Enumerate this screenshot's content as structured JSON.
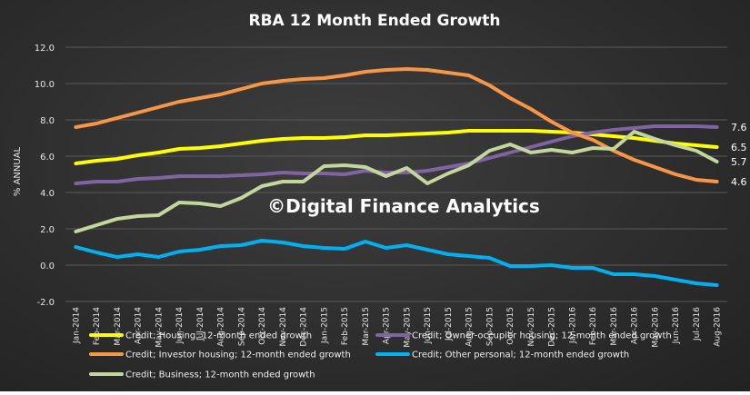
{
  "chart_data": {
    "type": "line",
    "title": "RBA 12 Month Ended Growth",
    "ylabel": "% ANNUAL",
    "xlabel": "",
    "watermark": "©Digital Finance Analytics",
    "ylim": [
      -2.0,
      12.0
    ],
    "yticks": [
      "12.0",
      "10.0",
      "8.0",
      "6.0",
      "4.0",
      "2.0",
      "0.0",
      "-2.0"
    ],
    "ytick_values": [
      12,
      10,
      8,
      6,
      4,
      2,
      0,
      -2
    ],
    "grid": true,
    "legend_placement": "bottom",
    "categories": [
      "Jan-2014",
      "Feb-2014",
      "Mar-2014",
      "Apr-2014",
      "May-2014",
      "Jun-2014",
      "Jul-2014",
      "Aug-2014",
      "Sep-2014",
      "Oct-2014",
      "Nov-2014",
      "Dec-2014",
      "Jan-2015",
      "Feb-2015",
      "Mar-2015",
      "Apr-2015",
      "May-2015",
      "Jun-2015",
      "Jul-2015",
      "Aug-2015",
      "Sep-2015",
      "Oct-2015",
      "Nov-2015",
      "Dec-2015",
      "Jan-2016",
      "Feb-2016",
      "Mar-2016",
      "Apr-2016",
      "May-2016",
      "Jun-2016",
      "Jul-2016",
      "Aug-2016"
    ],
    "series": [
      {
        "name": "Credit; Housing; 12-month ended growth",
        "color": "#ffff00",
        "end_label": "6.5",
        "values": [
          5.6,
          5.75,
          5.85,
          6.05,
          6.2,
          6.4,
          6.45,
          6.55,
          6.7,
          6.85,
          6.95,
          7.0,
          7.0,
          7.05,
          7.15,
          7.15,
          7.2,
          7.25,
          7.3,
          7.4,
          7.4,
          7.4,
          7.4,
          7.35,
          7.3,
          7.2,
          7.1,
          7.0,
          6.85,
          6.7,
          6.6,
          6.5
        ]
      },
      {
        "name": "Credit; Owner-occupier housing; 12-month ended growth",
        "color": "#8064a2",
        "end_label": "7.6",
        "values": [
          4.5,
          4.6,
          4.6,
          4.75,
          4.8,
          4.9,
          4.9,
          4.9,
          4.95,
          5.0,
          5.1,
          5.05,
          5.05,
          5.0,
          5.2,
          5.1,
          5.1,
          5.2,
          5.4,
          5.6,
          5.9,
          6.2,
          6.5,
          6.8,
          7.1,
          7.3,
          7.45,
          7.55,
          7.65,
          7.65,
          7.65,
          7.6
        ]
      },
      {
        "name": "Credit; Investor housing; 12-month ended growth",
        "color": "#f79646",
        "end_label": "4.6",
        "values": [
          7.6,
          7.8,
          8.1,
          8.4,
          8.7,
          9.0,
          9.2,
          9.4,
          9.7,
          10.0,
          10.15,
          10.25,
          10.3,
          10.45,
          10.65,
          10.75,
          10.8,
          10.75,
          10.6,
          10.45,
          9.9,
          9.2,
          8.6,
          7.9,
          7.3,
          6.9,
          6.3,
          5.8,
          5.4,
          5.0,
          4.7,
          4.6
        ]
      },
      {
        "name": "Credit; Other personal; 12-month ended growth",
        "color": "#00b0f0",
        "end_label": "",
        "values": [
          1.0,
          0.7,
          0.45,
          0.6,
          0.45,
          0.75,
          0.85,
          1.05,
          1.1,
          1.35,
          1.25,
          1.05,
          0.95,
          0.9,
          1.3,
          0.95,
          1.1,
          0.85,
          0.6,
          0.5,
          0.4,
          -0.05,
          -0.05,
          0.0,
          -0.15,
          -0.15,
          -0.5,
          -0.5,
          -0.6,
          -0.8,
          -1.0,
          -1.1
        ]
      },
      {
        "name": "Credit; Business; 12-month ended growth",
        "color": "#c3d69b",
        "end_label": "5.7",
        "values": [
          1.85,
          2.2,
          2.55,
          2.7,
          2.75,
          3.45,
          3.4,
          3.25,
          3.7,
          4.35,
          4.6,
          4.6,
          5.45,
          5.5,
          5.4,
          4.9,
          5.35,
          4.5,
          5.05,
          5.5,
          6.3,
          6.65,
          6.2,
          6.35,
          6.2,
          6.45,
          6.4,
          7.35,
          6.95,
          6.6,
          6.3,
          5.7
        ]
      }
    ]
  }
}
